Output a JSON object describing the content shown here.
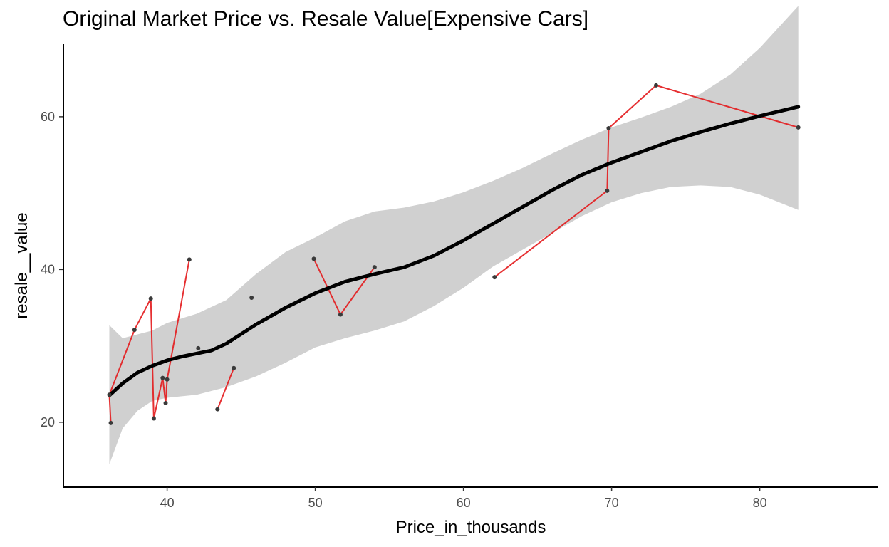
{
  "chart_data": {
    "type": "scatter",
    "title": "Original Market Price vs. Resale Value[Expensive Cars]",
    "xlabel": "Price_in_thousands",
    "ylabel": "resale__value",
    "xlim": [
      33,
      88
    ],
    "ylim": [
      11.5,
      69.5
    ],
    "x_ticks": [
      40,
      50,
      60,
      70,
      80
    ],
    "y_ticks": [
      20,
      40,
      60
    ],
    "grid": false,
    "colors": {
      "points": "#3a3a3a",
      "connector_line": "#e31a1c",
      "smooth_line": "#000000",
      "confidence_band": "#d0d0d0"
    },
    "points": [
      {
        "x": 36.1,
        "y": 23.6
      },
      {
        "x": 36.2,
        "y": 19.9
      },
      {
        "x": 37.8,
        "y": 32.1
      },
      {
        "x": 38.9,
        "y": 36.2
      },
      {
        "x": 39.1,
        "y": 20.5
      },
      {
        "x": 39.7,
        "y": 25.8
      },
      {
        "x": 39.9,
        "y": 22.5
      },
      {
        "x": 40.0,
        "y": 25.6
      },
      {
        "x": 41.5,
        "y": 41.3
      },
      {
        "x": 42.1,
        "y": 29.7
      },
      {
        "x": 43.4,
        "y": 21.7
      },
      {
        "x": 44.5,
        "y": 27.1
      },
      {
        "x": 45.7,
        "y": 36.3
      },
      {
        "x": 49.9,
        "y": 41.4
      },
      {
        "x": 51.7,
        "y": 34.1
      },
      {
        "x": 54.0,
        "y": 40.3
      },
      {
        "x": 62.1,
        "y": 39.0
      },
      {
        "x": 69.7,
        "y": 50.3
      },
      {
        "x": 69.8,
        "y": 58.5
      },
      {
        "x": 73.0,
        "y": 64.1
      },
      {
        "x": 82.6,
        "y": 58.6
      }
    ],
    "connector_order": [
      1,
      0,
      2,
      3,
      4,
      5,
      6,
      7,
      8,
      null,
      10,
      11,
      null,
      13,
      14,
      15,
      null,
      16,
      17,
      18,
      19,
      20
    ],
    "smooth_line": [
      {
        "x": 36.1,
        "y": 23.5
      },
      {
        "x": 37.0,
        "y": 25.1
      },
      {
        "x": 38.0,
        "y": 26.5
      },
      {
        "x": 39.0,
        "y": 27.4
      },
      {
        "x": 40.0,
        "y": 28.1
      },
      {
        "x": 41.0,
        "y": 28.6
      },
      {
        "x": 42.0,
        "y": 29.0
      },
      {
        "x": 43.0,
        "y": 29.4
      },
      {
        "x": 44.0,
        "y": 30.3
      },
      {
        "x": 46.0,
        "y": 32.8
      },
      {
        "x": 48.0,
        "y": 35.0
      },
      {
        "x": 50.0,
        "y": 36.9
      },
      {
        "x": 52.0,
        "y": 38.4
      },
      {
        "x": 54.0,
        "y": 39.4
      },
      {
        "x": 56.0,
        "y": 40.3
      },
      {
        "x": 58.0,
        "y": 41.8
      },
      {
        "x": 60.0,
        "y": 43.8
      },
      {
        "x": 62.0,
        "y": 46.0
      },
      {
        "x": 64.0,
        "y": 48.2
      },
      {
        "x": 66.0,
        "y": 50.4
      },
      {
        "x": 68.0,
        "y": 52.4
      },
      {
        "x": 70.0,
        "y": 54.0
      },
      {
        "x": 72.0,
        "y": 55.4
      },
      {
        "x": 74.0,
        "y": 56.8
      },
      {
        "x": 76.0,
        "y": 58.0
      },
      {
        "x": 78.0,
        "y": 59.1
      },
      {
        "x": 80.0,
        "y": 60.1
      },
      {
        "x": 82.6,
        "y": 61.3
      }
    ],
    "confidence_upper": [
      {
        "x": 36.1,
        "y": 32.7
      },
      {
        "x": 37.0,
        "y": 31.0
      },
      {
        "x": 38.0,
        "y": 31.5
      },
      {
        "x": 39.0,
        "y": 32.0
      },
      {
        "x": 40.0,
        "y": 33.0
      },
      {
        "x": 42.0,
        "y": 34.2
      },
      {
        "x": 44.0,
        "y": 36.0
      },
      {
        "x": 46.0,
        "y": 39.4
      },
      {
        "x": 48.0,
        "y": 42.3
      },
      {
        "x": 50.0,
        "y": 44.2
      },
      {
        "x": 52.0,
        "y": 46.3
      },
      {
        "x": 54.0,
        "y": 47.6
      },
      {
        "x": 56.0,
        "y": 48.1
      },
      {
        "x": 58.0,
        "y": 48.9
      },
      {
        "x": 60.0,
        "y": 50.1
      },
      {
        "x": 62.0,
        "y": 51.6
      },
      {
        "x": 64.0,
        "y": 53.3
      },
      {
        "x": 66.0,
        "y": 55.2
      },
      {
        "x": 68.0,
        "y": 57.0
      },
      {
        "x": 70.0,
        "y": 58.6
      },
      {
        "x": 72.0,
        "y": 59.9
      },
      {
        "x": 74.0,
        "y": 61.3
      },
      {
        "x": 76.0,
        "y": 63.0
      },
      {
        "x": 78.0,
        "y": 65.5
      },
      {
        "x": 80.0,
        "y": 69.0
      },
      {
        "x": 82.6,
        "y": 74.5
      }
    ],
    "confidence_lower": [
      {
        "x": 36.1,
        "y": 14.5
      },
      {
        "x": 37.0,
        "y": 19.2
      },
      {
        "x": 38.0,
        "y": 21.5
      },
      {
        "x": 39.0,
        "y": 22.8
      },
      {
        "x": 40.0,
        "y": 23.2
      },
      {
        "x": 42.0,
        "y": 23.6
      },
      {
        "x": 44.0,
        "y": 24.6
      },
      {
        "x": 46.0,
        "y": 26.0
      },
      {
        "x": 48.0,
        "y": 27.8
      },
      {
        "x": 50.0,
        "y": 29.8
      },
      {
        "x": 52.0,
        "y": 31.0
      },
      {
        "x": 54.0,
        "y": 32.0
      },
      {
        "x": 56.0,
        "y": 33.2
      },
      {
        "x": 58.0,
        "y": 35.2
      },
      {
        "x": 60.0,
        "y": 37.6
      },
      {
        "x": 62.0,
        "y": 40.4
      },
      {
        "x": 64.0,
        "y": 42.6
      },
      {
        "x": 66.0,
        "y": 44.8
      },
      {
        "x": 68.0,
        "y": 47.0
      },
      {
        "x": 70.0,
        "y": 48.8
      },
      {
        "x": 72.0,
        "y": 50.0
      },
      {
        "x": 74.0,
        "y": 50.8
      },
      {
        "x": 76.0,
        "y": 51.0
      },
      {
        "x": 78.0,
        "y": 50.8
      },
      {
        "x": 80.0,
        "y": 49.8
      },
      {
        "x": 82.6,
        "y": 47.8
      }
    ]
  }
}
